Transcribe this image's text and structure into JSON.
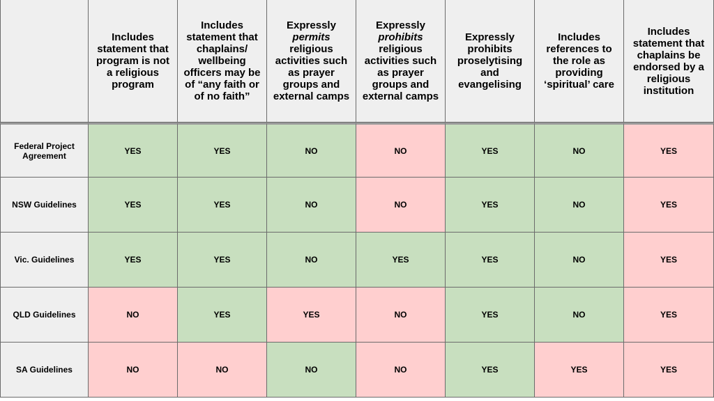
{
  "headers": [
    {
      "pre": "Includes statement that program is not a religious program",
      "em": "",
      "post": ""
    },
    {
      "pre": "Includes statement that chaplains/ wellbeing officers may be of “any faith or of no faith”",
      "em": "",
      "post": ""
    },
    {
      "pre": "Expressly ",
      "em": "permits",
      "post": " religious activities such as prayer groups and external camps"
    },
    {
      "pre": "Expressly ",
      "em": "prohibits",
      "post": " religious activities such as prayer groups and external camps"
    },
    {
      "pre": "Expressly prohibits proselytising and evangelising",
      "em": "",
      "post": ""
    },
    {
      "pre": "Includes references to the role as providing ‘spiritual’ care",
      "em": "",
      "post": ""
    },
    {
      "pre": "Includes statement that chaplains be endorsed by a religious institution",
      "em": "",
      "post": ""
    }
  ],
  "rows": [
    {
      "label": "Federal Project Agreement",
      "cells": [
        {
          "value": "YES",
          "status": "green"
        },
        {
          "value": "YES",
          "status": "green"
        },
        {
          "value": "NO",
          "status": "green"
        },
        {
          "value": "NO",
          "status": "red"
        },
        {
          "value": "YES",
          "status": "green"
        },
        {
          "value": "NO",
          "status": "green"
        },
        {
          "value": "YES",
          "status": "red"
        }
      ]
    },
    {
      "label": "NSW Guidelines",
      "cells": [
        {
          "value": "YES",
          "status": "green"
        },
        {
          "value": "YES",
          "status": "green"
        },
        {
          "value": "NO",
          "status": "green"
        },
        {
          "value": "NO",
          "status": "red"
        },
        {
          "value": "YES",
          "status": "green"
        },
        {
          "value": "NO",
          "status": "green"
        },
        {
          "value": "YES",
          "status": "red"
        }
      ]
    },
    {
      "label": "Vic. Guidelines",
      "cells": [
        {
          "value": "YES",
          "status": "green"
        },
        {
          "value": "YES",
          "status": "green"
        },
        {
          "value": "NO",
          "status": "green"
        },
        {
          "value": "YES",
          "status": "green"
        },
        {
          "value": "YES",
          "status": "green"
        },
        {
          "value": "NO",
          "status": "green"
        },
        {
          "value": "YES",
          "status": "red"
        }
      ]
    },
    {
      "label": "QLD Guidelines",
      "cells": [
        {
          "value": "NO",
          "status": "red"
        },
        {
          "value": "YES",
          "status": "green"
        },
        {
          "value": "YES",
          "status": "red"
        },
        {
          "value": "NO",
          "status": "red"
        },
        {
          "value": "YES",
          "status": "green"
        },
        {
          "value": "NO",
          "status": "green"
        },
        {
          "value": "YES",
          "status": "red"
        }
      ]
    },
    {
      "label": "SA Guidelines",
      "cells": [
        {
          "value": "NO",
          "status": "red"
        },
        {
          "value": "NO",
          "status": "red"
        },
        {
          "value": "NO",
          "status": "green"
        },
        {
          "value": "NO",
          "status": "red"
        },
        {
          "value": "YES",
          "status": "green"
        },
        {
          "value": "YES",
          "status": "red"
        },
        {
          "value": "YES",
          "status": "red"
        }
      ]
    }
  ],
  "colors": {
    "green": "#c8dfbf",
    "red": "#ffcfcf",
    "header": "#efefef"
  }
}
